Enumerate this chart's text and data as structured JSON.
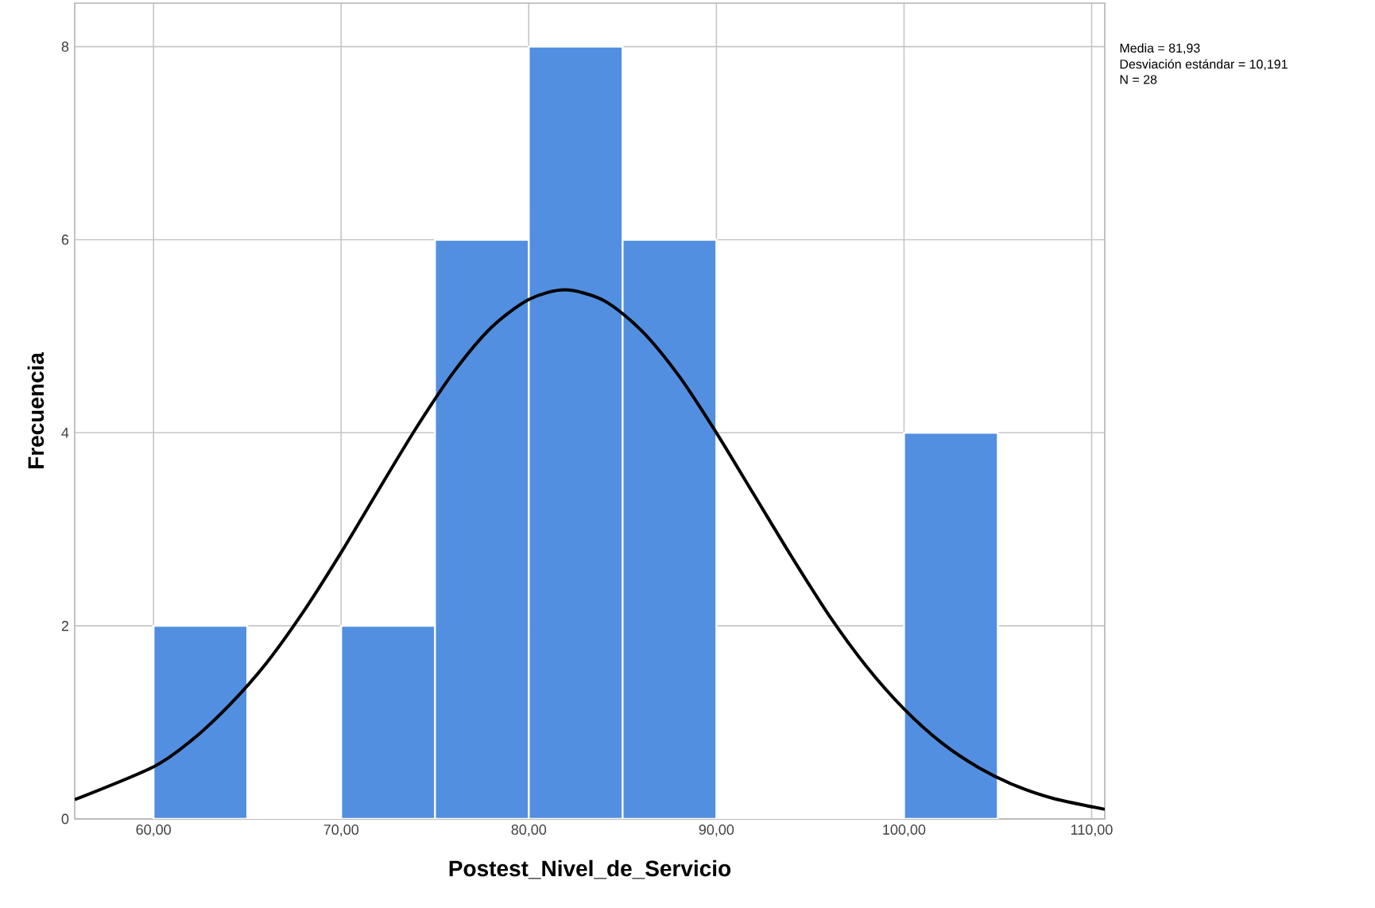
{
  "chart_data": {
    "type": "histogram",
    "xlabel": "Postest_Nivel_de_Servicio",
    "ylabel": "Frecuencia",
    "annotations": [
      "Media = 81,93",
      "Desviación estándar = 10,191",
      "N = 28"
    ],
    "bins": [
      60,
      65,
      70,
      75,
      80,
      85,
      90,
      95,
      100,
      105
    ],
    "values": [
      2,
      0,
      2,
      6,
      8,
      6,
      0,
      0,
      4
    ],
    "color": "#528fe0",
    "series": [
      {
        "type": "line",
        "color": "#000000",
        "x": [
          55.8,
          60,
          62,
          64,
          66,
          68,
          70,
          72,
          74,
          76,
          78,
          80,
          81.93,
          84,
          86,
          88,
          90,
          92,
          94,
          96,
          98,
          100,
          102,
          104,
          106,
          108,
          110.7
        ],
        "values": [
          0.2,
          0.54,
          0.81,
          1.17,
          1.61,
          2.15,
          2.76,
          3.41,
          4.05,
          4.63,
          5.09,
          5.38,
          5.48,
          5.37,
          5.06,
          4.59,
          4.0,
          3.36,
          2.72,
          2.11,
          1.58,
          1.14,
          0.79,
          0.53,
          0.34,
          0.21,
          0.1
        ]
      }
    ],
    "xlim": [
      55.8,
      110.7
    ],
    "ylim": [
      0,
      8.45
    ],
    "xticks": [
      {
        "value": 60,
        "label": "60,00"
      },
      {
        "value": 70,
        "label": "70,00"
      },
      {
        "value": 80,
        "label": "80,00"
      },
      {
        "value": 90,
        "label": "90,00"
      },
      {
        "value": 100,
        "label": "100,00"
      },
      {
        "value": 110,
        "label": "110,00"
      }
    ],
    "yticks": [
      0,
      2,
      4,
      6,
      8
    ],
    "grid": true
  }
}
